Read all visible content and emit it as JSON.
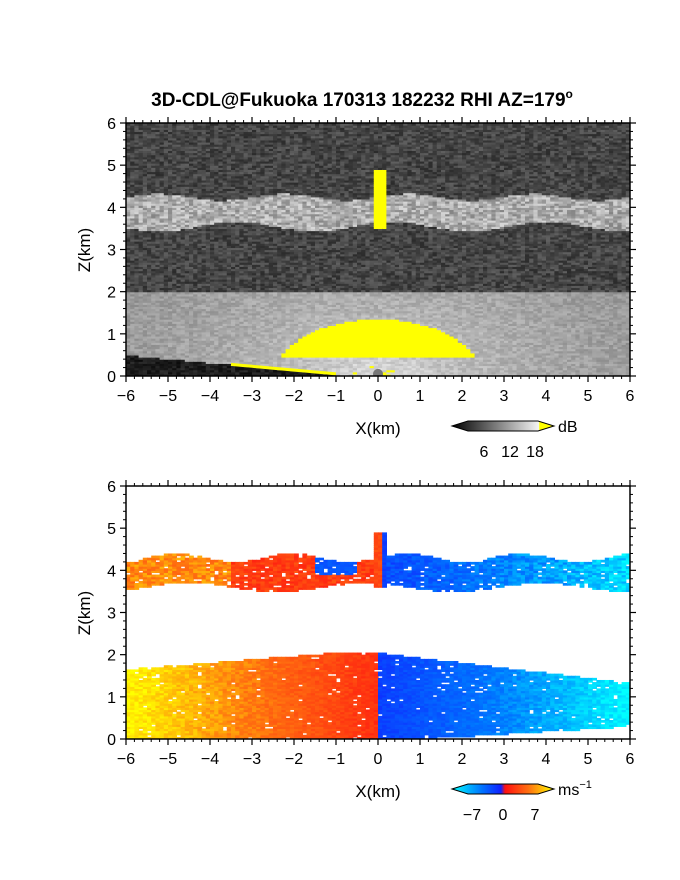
{
  "chart_data": [
    {
      "type": "heatmap",
      "title": "3D-CDL@Fukuoka 170313 182232 RHI AZ=179",
      "title_superscript": "o",
      "xlabel": "X(km)",
      "ylabel": "Z(km)",
      "xlim": [
        -6,
        6
      ],
      "ylim": [
        0,
        6
      ],
      "xticks": [
        -6,
        -5,
        -4,
        -3,
        -2,
        -1,
        0,
        1,
        2,
        3,
        4,
        5,
        6
      ],
      "yticks": [
        0,
        1,
        2,
        3,
        4,
        5,
        6
      ],
      "colorbar": {
        "unit": "dB",
        "ticks": [
          6,
          12,
          18
        ],
        "colormap": "grayscale",
        "saturation_color": "#ffff00"
      },
      "layers": [
        {
          "name": "cloud layer",
          "z_range": [
            3.5,
            4.3
          ],
          "peak_x": 0.05,
          "peak_z": 4.9
        },
        {
          "name": "boundary layer",
          "z_range": [
            0.0,
            2.0
          ],
          "strong_center": [
            0,
            1
          ]
        }
      ]
    },
    {
      "type": "heatmap",
      "title": "",
      "xlabel": "X(km)",
      "ylabel": "Z(km)",
      "xlim": [
        -6,
        6
      ],
      "ylim": [
        0,
        6
      ],
      "xticks": [
        -6,
        -5,
        -4,
        -3,
        -2,
        -1,
        0,
        1,
        2,
        3,
        4,
        5,
        6
      ],
      "yticks": [
        0,
        1,
        2,
        3,
        4,
        5,
        6
      ],
      "colorbar": {
        "unit": "ms",
        "unit_exponent": "−1",
        "ticks": [
          "−7",
          "0",
          "7"
        ],
        "tick_values": [
          -7,
          0,
          7
        ],
        "colormap": "cyan-blue-red-yellow",
        "colors": [
          "#00ffff",
          "#0064ff",
          "#1020ff",
          "#ff1010",
          "#ff7010",
          "#ffff00"
        ]
      },
      "layers": [
        {
          "name": "cloud layer",
          "z_range": [
            3.55,
            4.35
          ],
          "velocity_left": 5,
          "velocity_right": -6
        },
        {
          "name": "boundary layer",
          "z_range": [
            0.0,
            2.05
          ],
          "velocity_left": 7,
          "velocity_right": -7
        }
      ]
    }
  ]
}
